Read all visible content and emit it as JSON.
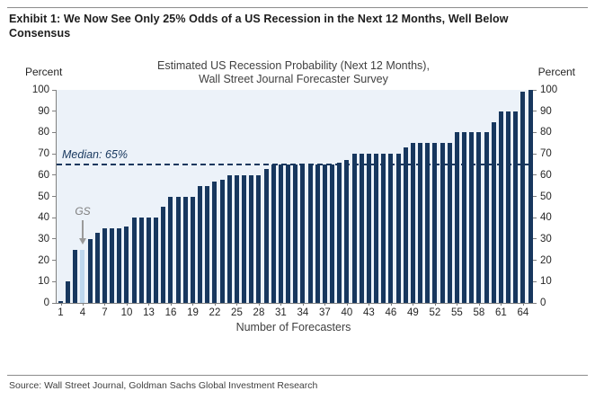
{
  "exhibit_title": "Exhibit 1: We Now See Only 25% Odds of a US Recession in the Next 12 Months, Well Below Consensus",
  "chart": {
    "title_line1": "Estimated US Recession Probability (Next 12 Months),",
    "title_line2": "Wall Street Journal Forecaster Survey",
    "left_axis_title": "Percent",
    "right_axis_title": "Percent",
    "xlabel": "Number of Forecasters",
    "median_label": "Median: 65%",
    "gs_label": "GS"
  },
  "source": "Source: Wall Street Journal, Goldman Sachs Global Investment Research",
  "chart_data": {
    "type": "bar",
    "title": "Estimated US Recession Probability (Next 12 Months), Wall Street Journal Forecaster Survey",
    "xlabel": "Number of Forecasters",
    "ylabel": "Percent",
    "ylim": [
      0,
      100
    ],
    "yticks": [
      0,
      10,
      20,
      30,
      40,
      50,
      60,
      70,
      80,
      90,
      100
    ],
    "n_forecasters": 65,
    "values": [
      1,
      10,
      25,
      25,
      30,
      33,
      35,
      35,
      35,
      36,
      40,
      40,
      40,
      40,
      45,
      50,
      50,
      50,
      50,
      55,
      55,
      57,
      58,
      60,
      60,
      60,
      60,
      60,
      63,
      65,
      65,
      65,
      65,
      65,
      65,
      65,
      65,
      65,
      66,
      67,
      70,
      70,
      70,
      70,
      70,
      70,
      70,
      73,
      75,
      75,
      75,
      75,
      75,
      75,
      80,
      80,
      80,
      80,
      80,
      85,
      90,
      90,
      90,
      99,
      100
    ],
    "xtick_positions": [
      1,
      4,
      7,
      10,
      13,
      16,
      19,
      22,
      25,
      28,
      31,
      34,
      37,
      40,
      43,
      46,
      49,
      52,
      55,
      58,
      61,
      64
    ],
    "xtick_labels": [
      "1",
      "4",
      "7",
      "10",
      "13",
      "16",
      "19",
      "22",
      "25",
      "28",
      "31",
      "34",
      "37",
      "40",
      "43",
      "46",
      "49",
      "52",
      "55",
      "58",
      "61",
      "64"
    ],
    "median": 65,
    "gs_forecaster_index": 4,
    "gs_value": 25,
    "grid": false,
    "legend_position": "none",
    "colors": {
      "bar": "#17375E",
      "gs_bar": "#BDD7EE",
      "median_line": "#17375E",
      "plot_background": "#ECF2F9",
      "axis": "#808080",
      "annotation": "#9a9a9a"
    }
  }
}
